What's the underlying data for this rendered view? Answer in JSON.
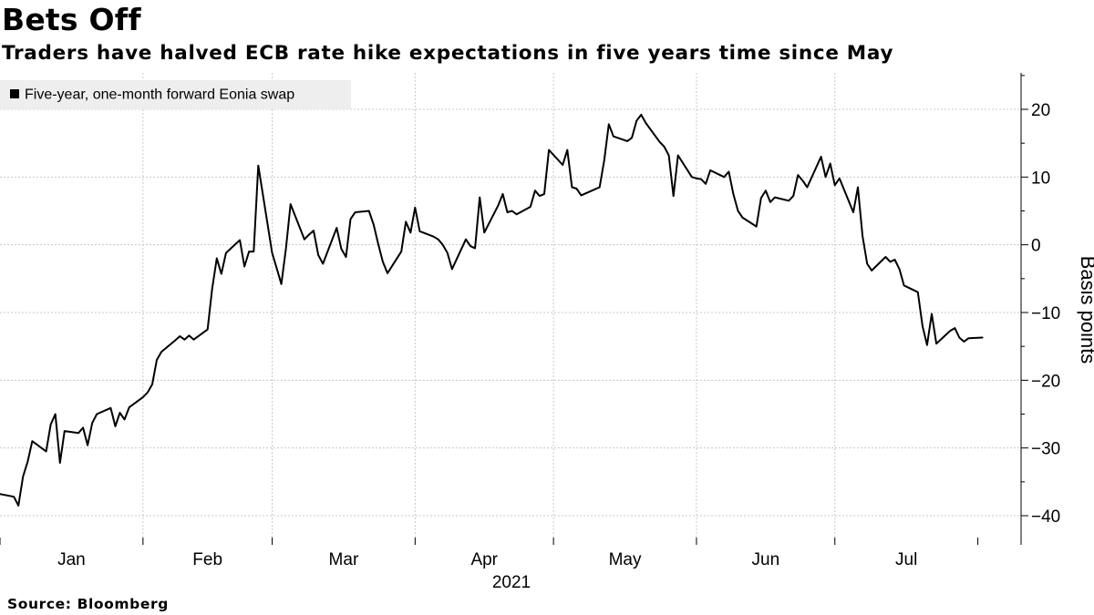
{
  "header": {
    "title": "Bets Off",
    "subtitle": "Traders have halved ECB rate hike expectations in five years time since May"
  },
  "footer": {
    "source": "Source: Bloomberg"
  },
  "colors": {
    "line": "#000000",
    "grid": "#c8c8c8",
    "legend_bg": "#eeeeee",
    "background": "#ffffff"
  },
  "chart_data": {
    "type": "line",
    "title": "Bets Off",
    "subtitle": "Traders have halved ECB rate hike expectations in five years time since May",
    "xlabel": "2021",
    "ylabel": "Basis points",
    "ylim": [
      -44,
      25
    ],
    "yticks": [
      20,
      10,
      0,
      -10,
      -20,
      -30,
      -40
    ],
    "ytick_labels": [
      "20",
      "10",
      "0",
      "−10",
      "−20",
      "−30",
      "−40"
    ],
    "month_labels": [
      "Jan",
      "Feb",
      "Mar",
      "Apr",
      "May",
      "Jun",
      "Jul"
    ],
    "year_label": "2021",
    "month_boundaries": [
      "2021-01-01",
      "2021-02-01",
      "2021-03-01",
      "2021-04-01",
      "2021-05-01",
      "2021-06-01",
      "2021-07-01",
      "2021-08-01"
    ],
    "x_start": "2021-01-01",
    "x_end": "2021-08-08",
    "grid": true,
    "legend_position": "top-left",
    "series": [
      {
        "name": "Five-year, one-month forward Eonia swap",
        "points": [
          [
            "2021-01-01",
            -36.8
          ],
          [
            "2021-01-04",
            -37.2
          ],
          [
            "2021-01-05",
            -38.5
          ],
          [
            "2021-01-06",
            -34.2
          ],
          [
            "2021-01-07",
            -32.0
          ],
          [
            "2021-01-08",
            -29.0
          ],
          [
            "2021-01-11",
            -30.5
          ],
          [
            "2021-01-12",
            -26.5
          ],
          [
            "2021-01-13",
            -25.0
          ],
          [
            "2021-01-14",
            -32.2
          ],
          [
            "2021-01-15",
            -27.5
          ],
          [
            "2021-01-18",
            -27.8
          ],
          [
            "2021-01-19",
            -27.0
          ],
          [
            "2021-01-20",
            -29.6
          ],
          [
            "2021-01-21",
            -26.3
          ],
          [
            "2021-01-22",
            -25.0
          ],
          [
            "2021-01-25",
            -24.1
          ],
          [
            "2021-01-26",
            -26.8
          ],
          [
            "2021-01-27",
            -24.8
          ],
          [
            "2021-01-28",
            -25.8
          ],
          [
            "2021-01-29",
            -24.0
          ],
          [
            "2021-02-01",
            -22.5
          ],
          [
            "2021-02-02",
            -21.8
          ],
          [
            "2021-02-03",
            -20.6
          ],
          [
            "2021-02-04",
            -17.0
          ],
          [
            "2021-02-05",
            -15.8
          ],
          [
            "2021-02-08",
            -14.1
          ],
          [
            "2021-02-09",
            -13.5
          ],
          [
            "2021-02-10",
            -14.0
          ],
          [
            "2021-02-11",
            -13.4
          ],
          [
            "2021-02-12",
            -14.0
          ],
          [
            "2021-02-15",
            -12.5
          ],
          [
            "2021-02-16",
            -6.5
          ],
          [
            "2021-02-17",
            -2.0
          ],
          [
            "2021-02-18",
            -4.3
          ],
          [
            "2021-02-19",
            -1.2
          ],
          [
            "2021-02-22",
            0.7
          ],
          [
            "2021-02-23",
            -3.2
          ],
          [
            "2021-02-24",
            -1.0
          ],
          [
            "2021-02-25",
            -1.0
          ],
          [
            "2021-02-26",
            11.7
          ],
          [
            "2021-03-01",
            -1.2
          ],
          [
            "2021-03-02",
            -3.5
          ],
          [
            "2021-03-03",
            -5.8
          ],
          [
            "2021-03-04",
            -0.5
          ],
          [
            "2021-03-05",
            6.0
          ],
          [
            "2021-03-08",
            0.8
          ],
          [
            "2021-03-09",
            1.5
          ],
          [
            "2021-03-10",
            2.1
          ],
          [
            "2021-03-11",
            -1.5
          ],
          [
            "2021-03-12",
            -2.8
          ],
          [
            "2021-03-15",
            2.5
          ],
          [
            "2021-03-16",
            -0.6
          ],
          [
            "2021-03-17",
            -1.8
          ],
          [
            "2021-03-18",
            3.8
          ],
          [
            "2021-03-19",
            4.8
          ],
          [
            "2021-03-22",
            5.0
          ],
          [
            "2021-03-23",
            3.0
          ],
          [
            "2021-03-24",
            0.1
          ],
          [
            "2021-03-25",
            -2.5
          ],
          [
            "2021-03-26",
            -4.2
          ],
          [
            "2021-03-29",
            -1.0
          ],
          [
            "2021-03-30",
            3.4
          ],
          [
            "2021-03-31",
            1.8
          ],
          [
            "2021-04-01",
            5.5
          ],
          [
            "2021-04-02",
            2.0
          ],
          [
            "2021-04-05",
            1.2
          ],
          [
            "2021-04-06",
            0.8
          ],
          [
            "2021-04-07",
            0.0
          ],
          [
            "2021-04-08",
            -1.2
          ],
          [
            "2021-04-09",
            -3.6
          ],
          [
            "2021-04-12",
            0.8
          ],
          [
            "2021-04-13",
            -0.2
          ],
          [
            "2021-04-14",
            -0.5
          ],
          [
            "2021-04-15",
            7.0
          ],
          [
            "2021-04-16",
            1.8
          ],
          [
            "2021-04-19",
            5.8
          ],
          [
            "2021-04-20",
            7.5
          ],
          [
            "2021-04-21",
            4.8
          ],
          [
            "2021-04-22",
            5.0
          ],
          [
            "2021-04-23",
            4.5
          ],
          [
            "2021-04-26",
            5.6
          ],
          [
            "2021-04-27",
            8.0
          ],
          [
            "2021-04-28",
            7.2
          ],
          [
            "2021-04-29",
            7.5
          ],
          [
            "2021-04-30",
            14.0
          ],
          [
            "2021-05-03",
            11.8
          ],
          [
            "2021-05-04",
            14.0
          ],
          [
            "2021-05-05",
            8.5
          ],
          [
            "2021-05-06",
            8.3
          ],
          [
            "2021-05-07",
            7.3
          ],
          [
            "2021-05-10",
            8.2
          ],
          [
            "2021-05-11",
            8.5
          ],
          [
            "2021-05-12",
            12.5
          ],
          [
            "2021-05-13",
            17.8
          ],
          [
            "2021-05-14",
            16.0
          ],
          [
            "2021-05-17",
            15.3
          ],
          [
            "2021-05-18",
            15.8
          ],
          [
            "2021-05-19",
            18.3
          ],
          [
            "2021-05-20",
            19.2
          ],
          [
            "2021-05-21",
            18.0
          ],
          [
            "2021-05-24",
            15.2
          ],
          [
            "2021-05-25",
            14.5
          ],
          [
            "2021-05-26",
            13.2
          ],
          [
            "2021-05-27",
            7.2
          ],
          [
            "2021-05-28",
            13.2
          ],
          [
            "2021-05-31",
            10.0
          ],
          [
            "2021-06-01",
            9.8
          ],
          [
            "2021-06-02",
            9.7
          ],
          [
            "2021-06-03",
            9.0
          ],
          [
            "2021-06-04",
            11.0
          ],
          [
            "2021-06-07",
            10.0
          ],
          [
            "2021-06-08",
            10.8
          ],
          [
            "2021-06-09",
            7.5
          ],
          [
            "2021-06-10",
            5.0
          ],
          [
            "2021-06-11",
            4.0
          ],
          [
            "2021-06-14",
            2.7
          ],
          [
            "2021-06-15",
            6.9
          ],
          [
            "2021-06-16",
            8.0
          ],
          [
            "2021-06-17",
            6.3
          ],
          [
            "2021-06-18",
            7.0
          ],
          [
            "2021-06-21",
            6.5
          ],
          [
            "2021-06-22",
            7.2
          ],
          [
            "2021-06-23",
            10.3
          ],
          [
            "2021-06-24",
            9.5
          ],
          [
            "2021-06-25",
            8.5
          ],
          [
            "2021-06-28",
            13.0
          ],
          [
            "2021-06-29",
            10.0
          ],
          [
            "2021-06-30",
            12.0
          ],
          [
            "2021-07-01",
            8.8
          ],
          [
            "2021-07-02",
            9.8
          ],
          [
            "2021-07-05",
            4.8
          ],
          [
            "2021-07-06",
            8.5
          ],
          [
            "2021-07-07",
            1.3
          ],
          [
            "2021-07-08",
            -2.8
          ],
          [
            "2021-07-09",
            -3.8
          ],
          [
            "2021-07-12",
            -1.8
          ],
          [
            "2021-07-13",
            -2.5
          ],
          [
            "2021-07-14",
            -2.2
          ],
          [
            "2021-07-15",
            -3.6
          ],
          [
            "2021-07-16",
            -6.0
          ],
          [
            "2021-07-19",
            -7.0
          ],
          [
            "2021-07-20",
            -12.0
          ],
          [
            "2021-07-21",
            -14.8
          ],
          [
            "2021-07-22",
            -10.2
          ],
          [
            "2021-07-23",
            -14.6
          ],
          [
            "2021-07-26",
            -12.7
          ],
          [
            "2021-07-27",
            -12.3
          ],
          [
            "2021-07-28",
            -13.7
          ],
          [
            "2021-07-29",
            -14.3
          ],
          [
            "2021-07-30",
            -13.8
          ],
          [
            "2021-08-02",
            -13.7
          ]
        ]
      }
    ]
  }
}
